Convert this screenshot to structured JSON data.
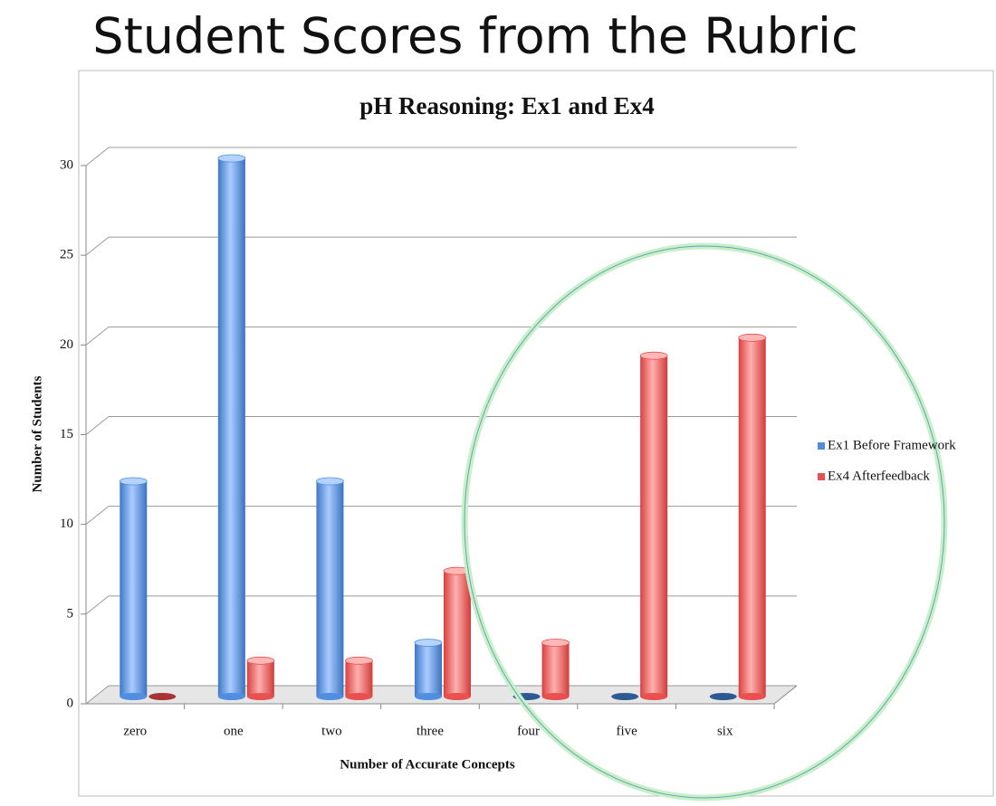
{
  "heading": "Student Scores from the Rubric",
  "chart_data": {
    "type": "bar",
    "title": "pH Reasoning: Ex1 and Ex4",
    "x_label": "Number of Accurate Concepts",
    "y_label": "Number of Students",
    "categories": [
      "zero",
      "one",
      "two",
      "three",
      "four",
      "five",
      "six"
    ],
    "series": [
      {
        "name": "Ex1 Before Framework",
        "color": "#4f8ee0",
        "values": [
          12,
          30,
          12,
          3,
          0,
          0,
          0
        ]
      },
      {
        "name": "Ex4 Afterfeedback",
        "color": "#e8514f",
        "values": [
          0,
          2,
          2,
          7,
          3,
          19,
          20
        ]
      }
    ],
    "ylim": [
      0,
      30
    ],
    "yticks": [
      0,
      5,
      10,
      15,
      20,
      25,
      30
    ],
    "grid": true,
    "legend": "right"
  }
}
